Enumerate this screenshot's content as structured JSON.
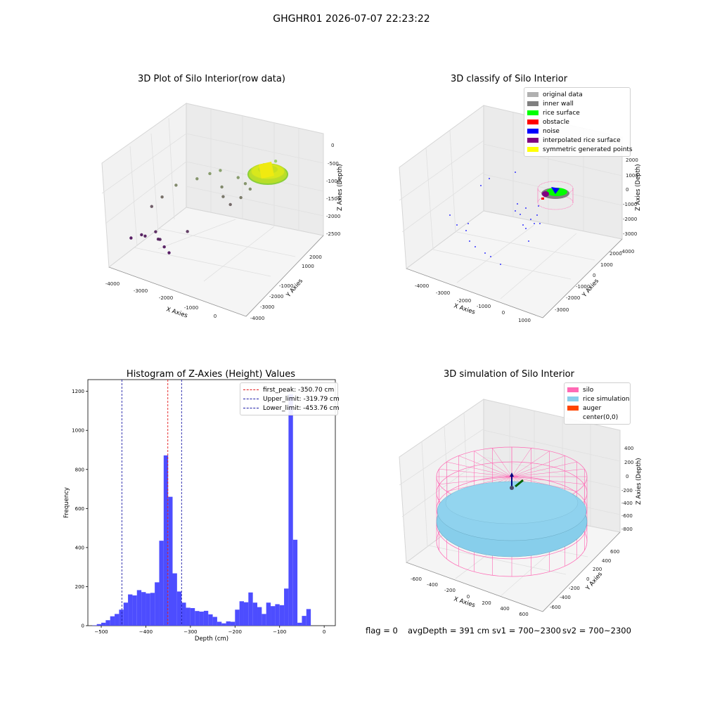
{
  "suptitle": "GHGHR01 2026-07-07 22:23:22",
  "colors": {
    "hist_bar": "#4d4dff",
    "first_peak": "#e41a1c",
    "limit_line": "#1f1fa8",
    "silo": "#ff69b4",
    "rice": "#87ceeb",
    "auger": "#ff4500",
    "rice_surface": "#00ff00",
    "obstacle": "#ff0000",
    "noise": "#0000ff",
    "interp": "#800080",
    "symmetric": "#ffff00",
    "inner_wall": "#808080",
    "original": "#b0b0b0"
  },
  "footer": {
    "flag": "flag = 0",
    "avg": "avgDepth = 391 cm",
    "sv1": "sv1 = 700~2300",
    "sv2": "sv2 = 700~2300"
  },
  "chart_data": [
    {
      "type": "scatter",
      "title": "3D Plot of Silo Interior(row data)",
      "xlabel": "X Axies",
      "ylabel": "Y Axies",
      "zlabel": "Z Axies (Depth)",
      "xticks": [
        "-4000",
        "-3000",
        "-2000",
        "-1000",
        "0"
      ],
      "yticks": [
        "2000",
        "1000",
        "-1000",
        "-2000",
        "-3000",
        "-4000"
      ],
      "zticks": [
        "0",
        "-500",
        "-1000",
        "-1500",
        "-2000",
        "-2500"
      ],
      "points": [
        {
          "x": -3800,
          "y": -3400,
          "z": -2450
        },
        {
          "x": -3500,
          "y": -3100,
          "z": -2400
        },
        {
          "x": -3300,
          "y": -3200,
          "z": -2380
        },
        {
          "x": -3000,
          "y": -2900,
          "z": -2300
        },
        {
          "x": -2700,
          "y": -3300,
          "z": -2350
        },
        {
          "x": -2600,
          "y": -3350,
          "z": -2330
        },
        {
          "x": -2300,
          "y": -3600,
          "z": -2420
        },
        {
          "x": -2000,
          "y": -3800,
          "z": -2480
        },
        {
          "x": -1800,
          "y": -2600,
          "z": -2200
        },
        {
          "x": -3600,
          "y": -2000,
          "z": -1950
        },
        {
          "x": -3400,
          "y": -1500,
          "z": -1800
        },
        {
          "x": -3100,
          "y": -900,
          "z": -1600
        },
        {
          "x": -2500,
          "y": -300,
          "z": -1500
        },
        {
          "x": -2200,
          "y": 200,
          "z": -1450
        },
        {
          "x": -1900,
          "y": 500,
          "z": -1400
        },
        {
          "x": -1500,
          "y": -200,
          "z": -1600
        },
        {
          "x": -1300,
          "y": -500,
          "z": -1750
        },
        {
          "x": -900,
          "y": -700,
          "z": -1850
        },
        {
          "x": -600,
          "y": -400,
          "z": -1700
        },
        {
          "x": -400,
          "y": 0,
          "z": -1550
        },
        {
          "x": -200,
          "y": 300,
          "z": -1400
        },
        {
          "x": 0,
          "y": 600,
          "z": -1300
        },
        {
          "x": 150,
          "y": 800,
          "z": -1200
        },
        {
          "x": -700,
          "y": 200,
          "z": -1500
        },
        {
          "x": -1100,
          "y": 400,
          "z": -1450
        },
        {
          "x": -300,
          "y": 1000,
          "z": -1150
        },
        {
          "x": 100,
          "y": 1200,
          "z": -1050
        }
      ],
      "surface": "ring-shaped dense cluster (rice surface) near top-right"
    },
    {
      "type": "scatter",
      "title": "3D classify of Silo Interior",
      "xlabel": "X Axies",
      "ylabel": "Y Axies",
      "zlabel": "Z Axies (Depth)",
      "xticks": [
        "-4000",
        "-3000",
        "-2000",
        "-1000",
        "0",
        "1000"
      ],
      "yticks": [
        "2000",
        "1000",
        "0",
        "-1000",
        "-2000",
        "-3000"
      ],
      "zticks": [
        "2000",
        "1000",
        "0",
        "-1000",
        "-2000",
        "-3000",
        "-4000"
      ],
      "legend": [
        {
          "label": "original data",
          "color": "#b0b0b0"
        },
        {
          "label": "inner wall",
          "color": "#808080"
        },
        {
          "label": "rice surface",
          "color": "#00ff00"
        },
        {
          "label": "obstacle",
          "color": "#ff0000"
        },
        {
          "label": "noise",
          "color": "#0000ff"
        },
        {
          "label": "interpolated rice surface",
          "color": "#800080"
        },
        {
          "label": "symmetric generated points",
          "color": "#ffff00"
        }
      ]
    },
    {
      "type": "bar",
      "title": "Histogram of Z-Axies (Height) Values",
      "xlabel": "Depth (cm)",
      "ylabel": "Frequency",
      "xlim": [
        -530,
        25
      ],
      "ylim": [
        0,
        1260
      ],
      "xticks": [
        -500,
        -400,
        -300,
        -200,
        -100,
        0
      ],
      "yticks": [
        0,
        200,
        400,
        600,
        800,
        1000,
        1200
      ],
      "bin_width": 10,
      "bin_starts": [
        -520,
        -510,
        -500,
        -490,
        -480,
        -470,
        -460,
        -450,
        -440,
        -430,
        -420,
        -410,
        -400,
        -390,
        -380,
        -370,
        -360,
        -350,
        -340,
        -330,
        -320,
        -310,
        -300,
        -290,
        -280,
        -270,
        -260,
        -250,
        -240,
        -230,
        -220,
        -210,
        -200,
        -190,
        -180,
        -170,
        -160,
        -150,
        -140,
        -130,
        -120,
        -110,
        -100,
        -90,
        -80,
        -70,
        -60,
        -50,
        -40,
        -30,
        -20,
        -10
      ],
      "values": [
        2,
        8,
        15,
        28,
        48,
        60,
        82,
        118,
        160,
        155,
        182,
        172,
        165,
        168,
        222,
        435,
        872,
        660,
        268,
        175,
        118,
        92,
        90,
        75,
        72,
        76,
        58,
        45,
        20,
        12,
        22,
        20,
        82,
        125,
        120,
        170,
        118,
        95,
        60,
        118,
        100,
        110,
        105,
        190,
        1185,
        440,
        15,
        50,
        85,
        0,
        0,
        0
      ],
      "lines": [
        {
          "label": "first_peak: -350.70 cm",
          "x": -350.7,
          "color": "#e41a1c"
        },
        {
          "label": "Upper_limit: -319.79 cm",
          "x": -319.79,
          "color": "#1f1fa8"
        },
        {
          "label": "Lower_limit: -453.76 cm",
          "x": -453.76,
          "color": "#1f1fa8"
        }
      ]
    },
    {
      "type": "scatter",
      "title": "3D simulation of Silo Interior",
      "xlabel": "X Axies",
      "ylabel": "Y Axies",
      "zlabel": "Z Axies (Depth)",
      "xticks": [
        "-600",
        "-400",
        "-200",
        "0",
        "200",
        "400",
        "600"
      ],
      "yticks": [
        "600",
        "400",
        "200",
        "0",
        "-200",
        "-400",
        "-600"
      ],
      "zticks": [
        "400",
        "200",
        "0",
        "-200",
        "-400",
        "-600",
        "-800"
      ],
      "legend": [
        {
          "label": "silo",
          "color": "#ff69b4"
        },
        {
          "label": "rice simulation",
          "color": "#87ceeb"
        },
        {
          "label": "auger",
          "color": "#ff4500"
        },
        {
          "label": "center(0,0)",
          "color": ""
        }
      ]
    }
  ]
}
